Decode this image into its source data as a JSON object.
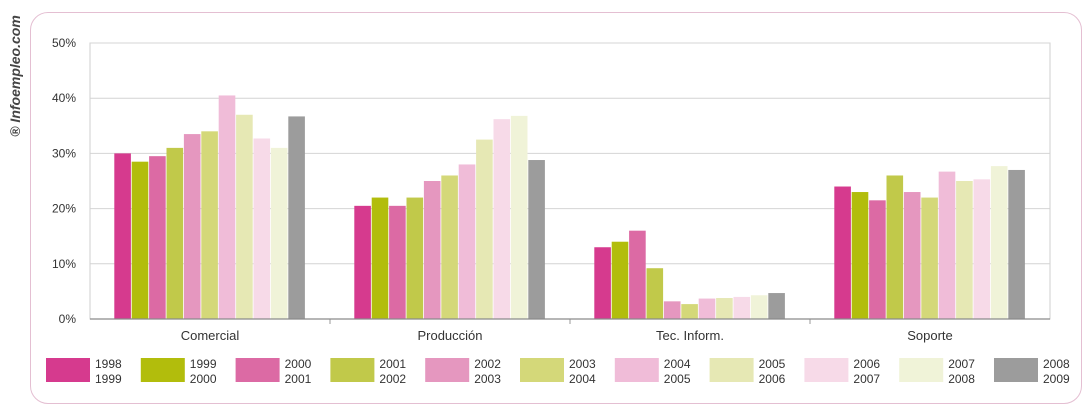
{
  "watermark": "® Infoempleo.com",
  "chart_data": {
    "type": "bar",
    "categories": [
      "Comercial",
      "Producción",
      "Tec. Inform.",
      "Soporte"
    ],
    "y_ticks": [
      "0%",
      "10%",
      "20%",
      "30%",
      "40%",
      "50%"
    ],
    "ylim": [
      0,
      50
    ],
    "grid": true,
    "legend_placement": "bottom",
    "series": [
      {
        "name": [
          "1998",
          "1999"
        ],
        "color": "#d63a8e",
        "values": [
          30,
          20.5,
          13,
          24
        ]
      },
      {
        "name": [
          "1999",
          "2000"
        ],
        "color": "#b2bd0c",
        "values": [
          28.5,
          22,
          14,
          23
        ]
      },
      {
        "name": [
          "2000",
          "2001"
        ],
        "color": "#dc6aa4",
        "values": [
          29.5,
          20.5,
          16,
          21.5
        ]
      },
      {
        "name": [
          "2001",
          "2002"
        ],
        "color": "#c1c94a",
        "values": [
          31,
          22,
          9.2,
          26
        ]
      },
      {
        "name": [
          "2002",
          "2003"
        ],
        "color": "#e597bf",
        "values": [
          33.5,
          25,
          3.2,
          23
        ]
      },
      {
        "name": [
          "2003",
          "2004"
        ],
        "color": "#d4d879",
        "values": [
          34,
          26,
          2.7,
          22
        ]
      },
      {
        "name": [
          "2004",
          "2005"
        ],
        "color": "#f0bcd8",
        "values": [
          40.5,
          28,
          3.7,
          26.7
        ]
      },
      {
        "name": [
          "2005",
          "2006"
        ],
        "color": "#e6e8b4",
        "values": [
          37,
          32.5,
          3.8,
          25
        ]
      },
      {
        "name": [
          "2006",
          "2007"
        ],
        "color": "#f7dae8",
        "values": [
          32.7,
          36.2,
          4,
          25.3
        ]
      },
      {
        "name": [
          "2007",
          "2008"
        ],
        "color": "#f0f3d8",
        "values": [
          31,
          36.8,
          4.3,
          27.7
        ]
      },
      {
        "name": [
          "2008",
          "2009"
        ],
        "color": "#9c9c9c",
        "values": [
          36.7,
          28.8,
          4.7,
          27
        ]
      }
    ]
  }
}
